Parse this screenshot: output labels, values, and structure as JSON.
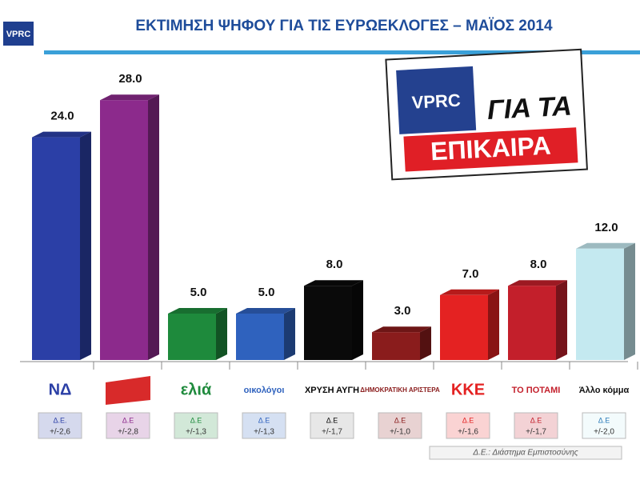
{
  "chart_data": {
    "type": "bar3d",
    "title": "ΕΚΤΙΜΗΣΗ ΨΗΦΟΥ ΓΙΑ ΤΙΣ ΕΥΡΩΕΚΛΟΓΕΣ – ΜΑΪΟΣ 2014",
    "brand": "VPRC",
    "badge": [
      "ΓΙΑ ΤΑ",
      "ΕΠΙΚΑΙΡΑ"
    ],
    "categories": [
      "ΝΔ",
      null,
      "ελιά",
      "οικολόγοι",
      "ΧΡΥΣΗ ΑΥΓΗ",
      "ΔΗΜΟΚΡΑΤΙΚΗ ΑΡΙΣΤΕΡΑ",
      "ΚΚΕ",
      "ΤΟ ΠΟΤΑΜΙ",
      "Άλλο κόμμα"
    ],
    "values": [
      24,
      28,
      5,
      5,
      8,
      3,
      7,
      8,
      12
    ],
    "value_labels": [
      "24.0",
      "28.0",
      "5.0",
      "5.0",
      "8.0",
      "3.0",
      "7.0",
      "8.0",
      "12.0"
    ],
    "colors": [
      "#2b3fa6",
      "#8c2a8c",
      "#1e8a3c",
      "#2f62be",
      "#0a0a0a",
      "#8a1c1c",
      "#e42222",
      "#c31f2b",
      "#c4e9f0"
    ],
    "ci_heads": [
      "Δ.Ε.",
      "Δ.Ε",
      "Δ.Ε",
      "Δ.Ε",
      "Δ.Ε",
      "Δ.Ε",
      "Δ.Ε",
      "Δ.Ε",
      "Δ.Ε"
    ],
    "ci_margins": [
      "+/-2,6",
      "+/-2,8",
      "+/-1,3",
      "+/-1,3",
      "+/-1,7",
      "+/-1,0",
      "+/-1,6",
      "+/-1,7",
      "+/-2,0"
    ],
    "footnote": "Δ.Ε.: Διάστημα Εμπιστοσύνης"
  }
}
